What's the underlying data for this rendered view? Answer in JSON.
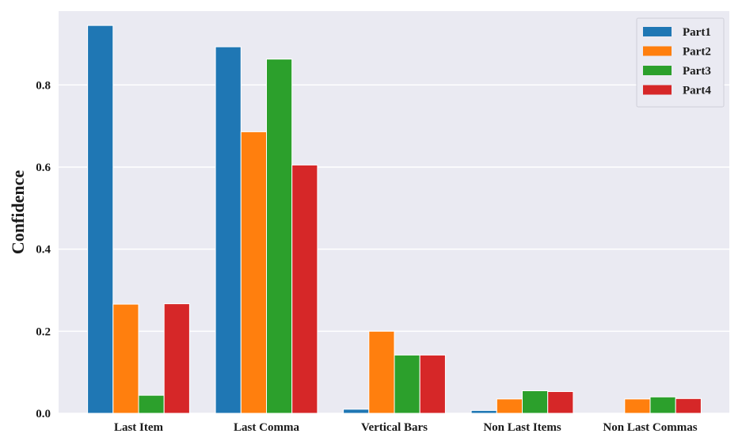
{
  "chart_data": {
    "type": "bar",
    "title": "",
    "xlabel": "",
    "ylabel": "Confidence",
    "ylim": [
      0,
      0.98
    ],
    "yticks": [
      "0.0",
      "0.2",
      "0.4",
      "0.6",
      "0.8"
    ],
    "grid": true,
    "legend_position": "top-right",
    "categories": [
      "Last Item",
      "Last Comma",
      "Vertical Bars",
      "Non Last Items",
      "Non Last Commas"
    ],
    "series": [
      {
        "name": "Part1",
        "color": "#1f77b4",
        "values": [
          0.945,
          0.893,
          0.01,
          0.007,
          0.0
        ]
      },
      {
        "name": "Part2",
        "color": "#ff7f0e",
        "values": [
          0.266,
          0.686,
          0.2,
          0.035,
          0.035
        ]
      },
      {
        "name": "Part3",
        "color": "#2ca02c",
        "values": [
          0.044,
          0.863,
          0.142,
          0.055,
          0.04
        ]
      },
      {
        "name": "Part4",
        "color": "#d62728",
        "values": [
          0.267,
          0.605,
          0.142,
          0.053,
          0.036
        ]
      }
    ],
    "colors": {
      "plot_background": "#eaeaf2",
      "gridline": "#ffffff"
    }
  }
}
